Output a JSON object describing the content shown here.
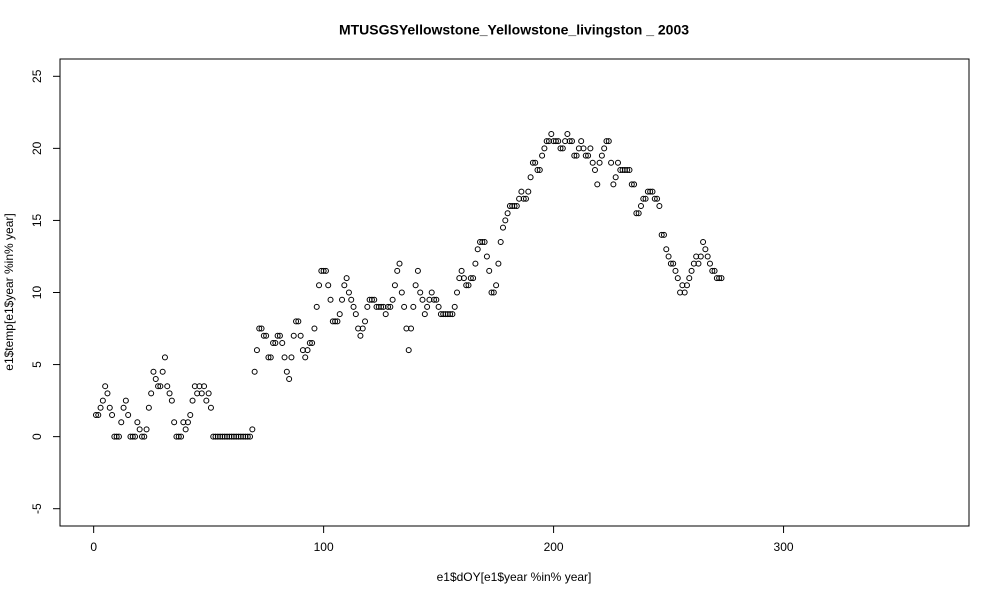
{
  "chart_data": {
    "type": "scatter",
    "title": "MTUSGSYellowstone_Yellowstone_livingston _ 2003",
    "x_label": "e1$dOY[e1$year %in% year]",
    "y_label": "e1$temp[e1$year %in% year]",
    "xlim": [
      -14.64,
      380.64
    ],
    "ylim": [
      -6.2,
      26.2
    ],
    "xticks": [
      0,
      100,
      200,
      300
    ],
    "yticks": [
      -5,
      0,
      5,
      10,
      15,
      20,
      25
    ],
    "color": "#000000",
    "x": [
      1,
      2,
      3,
      4,
      5,
      6,
      7,
      8,
      9,
      10,
      11,
      12,
      13,
      14,
      15,
      16,
      17,
      18,
      19,
      20,
      21,
      22,
      23,
      24,
      25,
      26,
      27,
      28,
      29,
      30,
      31,
      32,
      33,
      34,
      35,
      36,
      37,
      38,
      39,
      40,
      41,
      42,
      43,
      44,
      45,
      46,
      47,
      48,
      49,
      50,
      51,
      52,
      53,
      54,
      55,
      56,
      57,
      58,
      59,
      60,
      61,
      62,
      63,
      64,
      65,
      66,
      67,
      68,
      69,
      70,
      71,
      72,
      73,
      74,
      75,
      76,
      77,
      78,
      79,
      80,
      81,
      82,
      83,
      84,
      85,
      86,
      87,
      88,
      89,
      90,
      91,
      92,
      93,
      94,
      95,
      96,
      97,
      98,
      99,
      100,
      101,
      102,
      103,
      104,
      105,
      106,
      107,
      108,
      109,
      110,
      111,
      112,
      113,
      114,
      115,
      116,
      117,
      118,
      119,
      120,
      121,
      122,
      123,
      124,
      125,
      126,
      127,
      128,
      129,
      130,
      131,
      132,
      133,
      134,
      135,
      136,
      137,
      138,
      139,
      140,
      141,
      142,
      143,
      144,
      145,
      146,
      147,
      148,
      149,
      150,
      151,
      152,
      153,
      154,
      155,
      156,
      157,
      158,
      159,
      160,
      161,
      162,
      163,
      164,
      165,
      166,
      167,
      168,
      169,
      170,
      171,
      172,
      173,
      174,
      175,
      176,
      177,
      178,
      179,
      180,
      181,
      182,
      183,
      184,
      185,
      186,
      187,
      188,
      189,
      190,
      191,
      192,
      193,
      194,
      195,
      196,
      197,
      198,
      199,
      200,
      201,
      202,
      203,
      204,
      205,
      206,
      207,
      208,
      209,
      210,
      211,
      212,
      213,
      214,
      215,
      216,
      217,
      218,
      219,
      220,
      221,
      222,
      223,
      224,
      225,
      226,
      227,
      228,
      229,
      230,
      231,
      232,
      233,
      234,
      235,
      236,
      237,
      238,
      239,
      240,
      241,
      242,
      243,
      244,
      245,
      246,
      247,
      248,
      249,
      250,
      251,
      252,
      253,
      254,
      255,
      256,
      257,
      258,
      259,
      260,
      261,
      262,
      263,
      264,
      265,
      266,
      267,
      268,
      269,
      270,
      271,
      272,
      273
    ],
    "values": [
      1.5,
      1.5,
      2,
      2.5,
      3.5,
      3,
      2,
      1.5,
      0,
      0,
      0,
      1,
      2,
      2.5,
      1.5,
      0,
      0,
      0,
      1,
      0.5,
      0,
      0,
      0.5,
      2,
      3,
      4.5,
      4,
      3.5,
      3.5,
      4.5,
      5.5,
      3.5,
      3,
      2.5,
      1,
      0,
      0,
      0,
      1,
      0.5,
      1,
      1.5,
      2.5,
      3.5,
      3,
      3.5,
      3,
      3.5,
      2.5,
      3,
      2,
      0,
      0,
      0,
      0,
      0,
      0,
      0,
      0,
      0,
      0,
      0,
      0,
      0,
      0,
      0,
      0,
      0,
      0.5,
      4.5,
      6,
      7.5,
      7.5,
      7,
      7,
      5.5,
      5.5,
      6.5,
      6.5,
      7,
      7,
      6.5,
      5.5,
      4.5,
      4,
      5.5,
      7,
      8,
      8,
      7,
      6,
      5.5,
      6,
      6.5,
      6.5,
      7.5,
      9,
      10.5,
      11.5,
      11.5,
      11.5,
      10.5,
      9.5,
      8,
      8,
      8,
      8.5,
      9.5,
      10.5,
      11,
      10,
      9.5,
      9,
      8.5,
      7.5,
      7,
      7.5,
      8,
      9,
      9.5,
      9.5,
      9.5,
      9,
      9,
      9,
      9,
      8.5,
      9,
      9,
      9.5,
      10.5,
      11.5,
      12,
      10,
      9,
      7.5,
      6,
      7.5,
      9,
      10.5,
      11.5,
      10,
      9.5,
      8.5,
      9,
      9.5,
      10,
      9.5,
      9.5,
      9,
      8.5,
      8.5,
      8.5,
      8.5,
      8.5,
      8.5,
      9,
      10,
      11,
      11.5,
      11,
      10.5,
      10.5,
      11,
      11,
      12,
      13,
      13.5,
      13.5,
      13.5,
      12.5,
      11.5,
      10,
      10,
      10.5,
      12,
      13.5,
      14.5,
      15,
      15.5,
      16,
      16,
      16,
      16,
      16.5,
      17,
      16.5,
      16.5,
      17,
      18,
      19,
      19,
      18.5,
      18.5,
      19.5,
      20,
      20.5,
      20.5,
      21,
      20.5,
      20.5,
      20.5,
      20,
      20,
      20.5,
      21,
      20.5,
      20.5,
      19.5,
      19.5,
      20,
      20.5,
      20,
      19.5,
      19.5,
      20,
      19,
      18.5,
      17.5,
      19,
      19.5,
      20,
      20.5,
      20.5,
      19,
      17.5,
      18,
      19,
      18.5,
      18.5,
      18.5,
      18.5,
      18.5,
      17.5,
      17.5,
      15.5,
      15.5,
      16,
      16.5,
      16.5,
      17,
      17,
      17,
      16.5,
      16.5,
      16,
      14,
      14,
      13,
      12.5,
      12,
      12,
      11.5,
      11,
      10,
      10.5,
      10,
      10.5,
      11,
      11.5,
      12,
      12.5,
      12,
      12.5,
      13.5,
      13,
      12.5,
      12,
      11.5,
      11.5,
      11,
      11,
      11
    ]
  }
}
